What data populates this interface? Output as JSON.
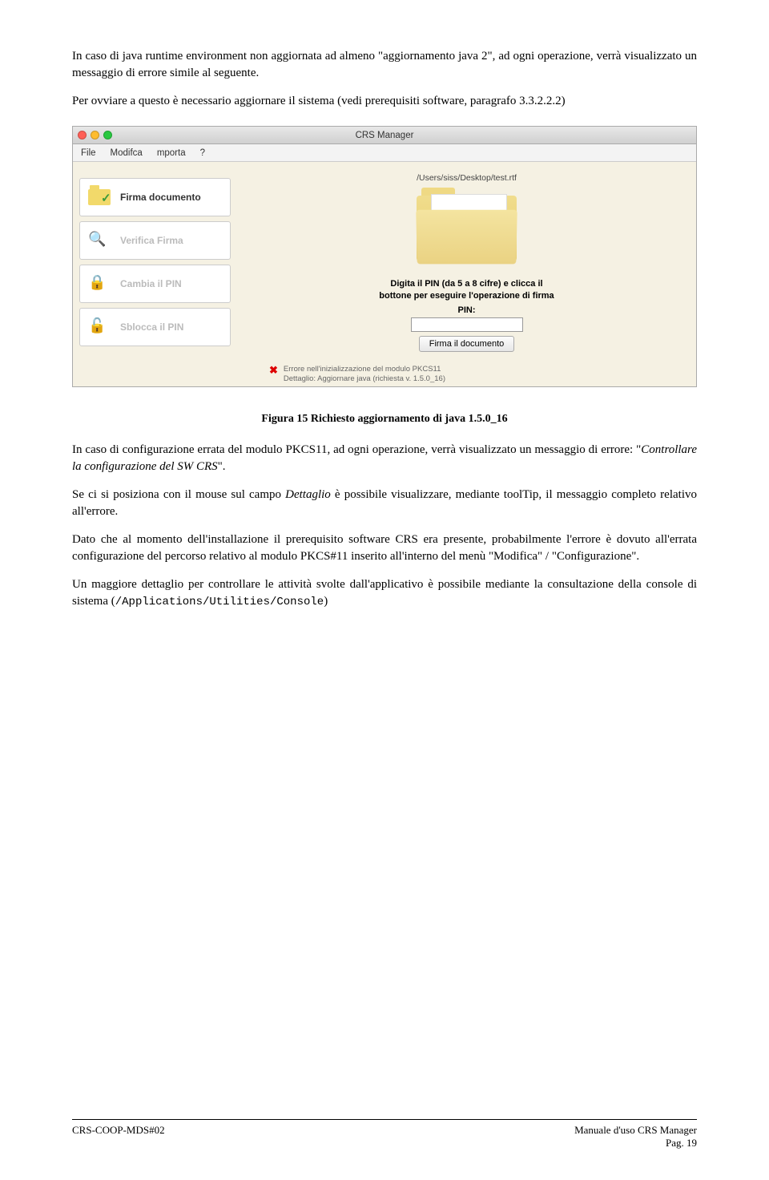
{
  "paragraphs": {
    "p1": "In caso di java runtime environment non aggiornata ad almeno \"aggiornamento java 2\", ad ogni operazione, verrà visualizzato un messaggio di errore simile al seguente.",
    "p2": "Per ovviare a questo è necessario aggiornare il sistema (vedi prerequisiti software, paragrafo 3.3.2.2.2)"
  },
  "app": {
    "title": "CRS Manager",
    "menu": {
      "file": "File",
      "modifica": "Modifca",
      "importa": "mporta",
      "help": "?"
    },
    "sidebar": {
      "firma": "Firma documento",
      "verifica": "Verifica Firma",
      "cambia": "Cambia il PIN",
      "sblocca": "Sblocca il PIN"
    },
    "main": {
      "filepath": "/Users/siss/Desktop/test.rtf",
      "prompt_l1": "Digita il PIN (da 5 a 8 cifre) e clicca il",
      "prompt_l2": "bottone per eseguire l'operazione di firma",
      "pin_label": "PIN:",
      "firma_btn": "Firma il documento",
      "error_l1": "Errore nell'inizializzazione del modulo PKCS11",
      "error_l2": "Dettaglio: Aggiornare java (richiesta v. 1.5.0_16)"
    }
  },
  "caption": "Figura 15  Richiesto aggiornamento di java 1.5.0_16",
  "body": {
    "p3a": "In caso di configurazione errata del modulo PKCS11, ad ogni operazione, verrà visualizzato un messaggio di errore: \"",
    "p3b": "Controllare la configurazione del SW CRS",
    "p3c": "\".",
    "p4a": "Se ci si posiziona con il mouse sul campo ",
    "p4b": "Dettaglio",
    "p4c": " è possibile visualizzare, mediante toolTip, il messaggio completo relativo all'errore.",
    "p5": "Dato che al momento dell'installazione il prerequisito software CRS era presente, probabilmente l'errore è dovuto all'errata configurazione del percorso relativo al modulo PKCS#11 inserito all'interno del menù \"Modifica\" / \"Configurazione\".",
    "p6a": "Un maggiore dettaglio per controllare le attività svolte dall'applicativo è possibile mediante la consultazione della console di sistema (",
    "p6b": "/Applications/Utilities/Console",
    "p6c": ")"
  },
  "footer": {
    "left": "CRS-COOP-MDS#02",
    "right_top": "Manuale d'uso CRS Manager",
    "right_bottom": "Pag. 19"
  }
}
